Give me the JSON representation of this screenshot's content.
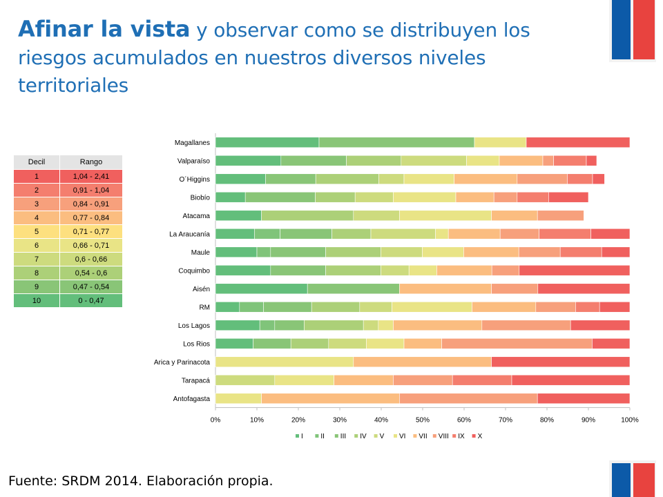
{
  "slide": {
    "title_bold": "Afinar la vista",
    "title_rest": " y observar como se distribuyen los riesgos acumulados en nuestros diversos niveles territoriales",
    "source": "Fuente: SRDM 2014. Elaboración propia."
  },
  "decile_table": {
    "headers": [
      "Decil",
      "Rango"
    ],
    "rows": [
      {
        "decil": "1",
        "rango": "1,04 - 2,41",
        "color": "#f0605e"
      },
      {
        "decil": "2",
        "rango": "0,91 - 1,04",
        "color": "#f47e6e"
      },
      {
        "decil": "3",
        "rango": "0,84 - 0,91",
        "color": "#f7a07c"
      },
      {
        "decil": "4",
        "rango": "0,77 - 0,84",
        "color": "#fbbd80"
      },
      {
        "decil": "5",
        "rango": "0,71 - 0,77",
        "color": "#fde07f"
      },
      {
        "decil": "6",
        "rango": "0,66 - 0,71",
        "color": "#e9e486"
      },
      {
        "decil": "7",
        "rango": "0,6 - 0,66",
        "color": "#cddb7e"
      },
      {
        "decil": "8",
        "rango": "0,54 - 0,6",
        "color": "#acd078"
      },
      {
        "decil": "9",
        "rango": "0,47 - 0,54",
        "color": "#89c577"
      },
      {
        "decil": "10",
        "rango": "0 - 0,47",
        "color": "#63be7b"
      }
    ]
  },
  "chart_data": {
    "type": "bar",
    "orientation": "horizontal",
    "stacked": "percent",
    "xlim": [
      0,
      100
    ],
    "x_ticks": [
      "0%",
      "10%",
      "20%",
      "30%",
      "40%",
      "50%",
      "60%",
      "70%",
      "80%",
      "90%",
      "100%"
    ],
    "grid": false,
    "legend_position": "bottom",
    "categories": [
      "Magallanes",
      "Valparaíso",
      "O´Higgins",
      "Biobío",
      "Atacama",
      "La Araucanía",
      "Maule",
      "Coquimbo",
      "Aisén",
      "RM",
      "Los Lagos",
      "Los Rios",
      "Arica y Parinacota",
      "Tarapacá",
      "Antofagasta"
    ],
    "series": [
      {
        "name": "I",
        "color": "#63be7b",
        "values": [
          25,
          15.8,
          12.1,
          7.2,
          11.1,
          9.4,
          10,
          13.3,
          22.2,
          5.8,
          10.7,
          9.1,
          0,
          0,
          0
        ]
      },
      {
        "name": "II",
        "color": "#80c47a",
        "values": [
          0,
          0,
          0,
          0,
          0,
          6.2,
          3.3,
          0,
          0,
          5.8,
          3.6,
          0,
          0,
          0,
          0
        ]
      },
      {
        "name": "III",
        "color": "#89c577",
        "values": [
          37.5,
          15.8,
          12.1,
          16.9,
          0,
          12.5,
          13.3,
          13.3,
          22.2,
          11.6,
          7.1,
          9.1,
          0,
          0,
          0
        ]
      },
      {
        "name": "IV",
        "color": "#acd078",
        "values": [
          0,
          13.2,
          15.2,
          9.6,
          22.2,
          9.4,
          13.3,
          13.3,
          0,
          11.6,
          14.3,
          9.1,
          0,
          0,
          0
        ]
      },
      {
        "name": "V",
        "color": "#cddb7e",
        "values": [
          0,
          15.8,
          6.1,
          9.2,
          11.1,
          15.6,
          10,
          6.8,
          0,
          7.8,
          3.6,
          9.1,
          0,
          14.3,
          0
        ]
      },
      {
        "name": "VI",
        "color": "#e9e486",
        "values": [
          12.5,
          7.9,
          12.1,
          15.1,
          22.2,
          3.1,
          10,
          6.7,
          0,
          19.3,
          3.6,
          9.1,
          33.3,
          14.3,
          11.1
        ]
      },
      {
        "name": "VII",
        "color": "#fbbd80",
        "values": [
          0,
          10.5,
          15.2,
          9.2,
          11.1,
          12.5,
          13.3,
          13.3,
          22.2,
          15.4,
          21.4,
          9.1,
          33.3,
          14.3,
          33.3
        ]
      },
      {
        "name": "VIII",
        "color": "#f7a07c",
        "values": [
          0,
          2.6,
          12.1,
          5.6,
          11.2,
          9.4,
          10,
          6.6,
          11.2,
          9.6,
          21.4,
          36.3,
          0,
          14.3,
          33.3
        ]
      },
      {
        "name": "IX",
        "color": "#f47e6e",
        "values": [
          0,
          7.9,
          6.1,
          7.6,
          0,
          12.5,
          10,
          0,
          0,
          5.8,
          0,
          0,
          0,
          14.3,
          0
        ]
      },
      {
        "name": "X",
        "color": "#f0605e",
        "values": [
          25,
          2.5,
          2.9,
          9.6,
          0,
          9.4,
          6.8,
          26.7,
          22.2,
          7.3,
          14.3,
          9.1,
          33.4,
          28.5,
          22.3
        ]
      }
    ]
  }
}
